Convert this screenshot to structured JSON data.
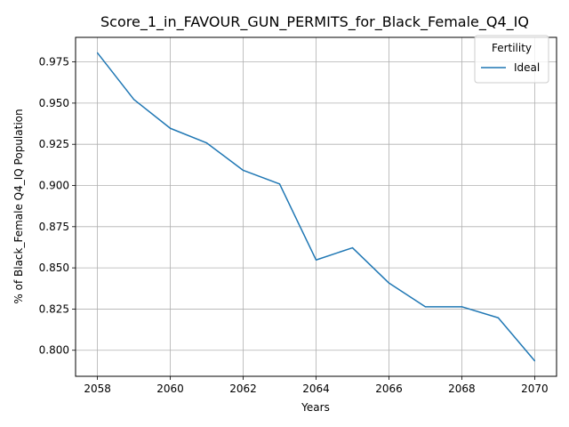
{
  "chart_data": {
    "type": "line",
    "title": "Score_1_in_FAVOUR_GUN_PERMITS_for_Black_Female_Q4_IQ",
    "xlabel": "Years",
    "ylabel": "% of Black_Female Q4_IQ Population",
    "x": [
      2058,
      2059,
      2060,
      2061,
      2062,
      2063,
      2064,
      2065,
      2066,
      2067,
      2068,
      2069,
      2070
    ],
    "series": [
      {
        "name": "Ideal",
        "color": "#1f77b4",
        "values": [
          0.9805,
          0.9522,
          0.9347,
          0.9258,
          0.9092,
          0.9009,
          0.8548,
          0.8622,
          0.8408,
          0.8264,
          0.8264,
          0.8197,
          0.7936
        ]
      }
    ],
    "xlim": [
      2057.4,
      2070.6
    ],
    "ylim": [
      0.7842,
      0.9899
    ],
    "xticks": [
      "2058",
      "2060",
      "2062",
      "2064",
      "2066",
      "2068",
      "2070"
    ],
    "yticks": [
      "0.800",
      "0.825",
      "0.850",
      "0.875",
      "0.900",
      "0.925",
      "0.950",
      "0.975"
    ],
    "grid": true,
    "legend": {
      "title": "Fertility",
      "position": "top-right"
    }
  }
}
